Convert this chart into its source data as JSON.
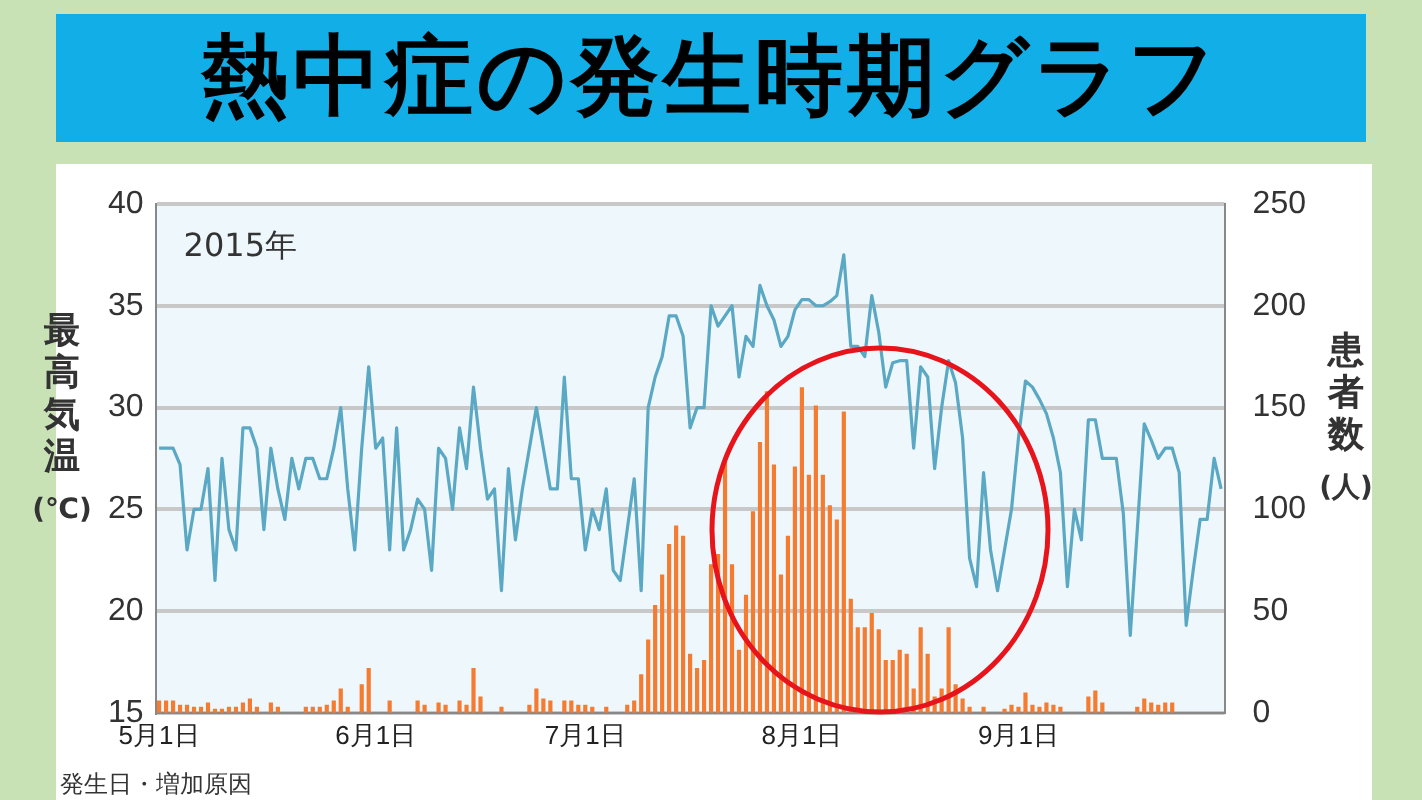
{
  "chart_data": {
    "type": "bar",
    "title": "熱中症の発生時期グラフ",
    "ylabel": "最高気温(℃)",
    "y2label": "患者数(人)",
    "annotations": [
      "2015年",
      "発生日・増加原因"
    ],
    "categories": [
      "5月1日",
      null,
      null,
      null,
      null,
      null,
      null,
      null,
      null,
      null,
      null,
      null,
      null,
      null,
      null,
      null,
      null,
      null,
      null,
      null,
      null,
      null,
      null,
      null,
      null,
      null,
      null,
      null,
      null,
      null,
      null,
      "6月1日",
      null,
      null,
      null,
      null,
      null,
      null,
      null,
      null,
      null,
      null,
      null,
      null,
      null,
      null,
      null,
      null,
      null,
      null,
      null,
      null,
      null,
      null,
      null,
      null,
      null,
      null,
      null,
      null,
      null,
      "7月1日",
      null,
      null,
      null,
      null,
      null,
      null,
      null,
      null,
      null,
      null,
      null,
      null,
      null,
      null,
      null,
      null,
      null,
      null,
      null,
      null,
      null,
      null,
      null,
      null,
      null,
      null,
      null,
      null,
      null,
      null,
      "8月1日",
      null,
      null,
      null,
      null,
      null,
      null,
      null,
      null,
      null,
      null,
      null,
      null,
      null,
      null,
      null,
      null,
      null,
      null,
      null,
      null,
      null,
      null,
      null,
      null,
      null,
      null,
      null,
      null,
      null,
      null,
      "9月1日",
      null,
      null,
      null,
      null,
      null,
      null,
      null,
      null,
      null,
      null,
      null,
      null,
      null,
      null,
      null,
      null,
      null,
      null,
      null,
      null,
      null,
      null,
      null,
      null,
      null,
      null,
      null,
      null,
      null
    ],
    "series": [
      {
        "axis": "y2",
        "color": "#f47b30",
        "values": [
          6,
          6,
          6,
          4,
          4,
          3,
          3,
          5,
          2,
          2,
          3,
          3,
          5,
          7,
          3,
          0,
          5,
          3,
          0,
          0,
          0,
          3,
          3,
          3,
          4,
          6,
          12,
          3,
          0,
          14,
          22,
          0,
          0,
          6,
          0,
          0,
          0,
          6,
          4,
          0,
          5,
          4,
          0,
          6,
          4,
          22,
          8,
          0,
          0,
          3,
          0,
          0,
          0,
          4,
          12,
          7,
          6,
          0,
          6,
          6,
          4,
          4,
          3,
          0,
          3,
          0,
          0,
          4,
          6,
          19,
          36,
          53,
          68,
          83,
          92,
          87,
          29,
          22,
          26,
          73,
          78,
          124,
          73,
          31,
          58,
          99,
          133,
          158,
          122,
          68,
          87,
          121,
          160,
          117,
          151,
          117,
          102,
          95,
          148,
          56,
          42,
          42,
          49,
          41,
          26,
          26,
          31,
          29,
          12,
          42,
          29,
          8,
          12,
          42,
          14,
          7,
          3,
          0,
          3,
          0,
          0,
          2,
          4,
          3,
          10,
          4,
          3,
          5,
          4,
          3,
          0,
          0,
          0,
          8,
          11,
          5,
          0,
          0,
          0,
          0,
          3,
          7,
          5,
          4,
          5,
          5,
          0,
          0,
          0,
          0,
          0,
          0,
          0
        ]
      },
      {
        "type": "line",
        "axis": "y",
        "color": "#5ba8c4",
        "values": [
          28,
          28,
          28,
          27.2,
          23,
          25,
          25,
          27,
          21.5,
          27.5,
          24,
          23,
          29,
          29,
          28,
          24,
          28,
          26,
          24.5,
          27.5,
          26,
          27.5,
          27.5,
          26.5,
          26.5,
          28,
          30,
          26,
          23,
          28,
          32,
          28,
          28.5,
          23,
          29,
          23,
          24,
          25.5,
          25,
          22,
          28,
          27.5,
          25,
          29,
          27,
          31,
          28,
          25.5,
          26,
          21,
          27,
          23.5,
          26,
          28,
          30,
          28,
          26,
          26,
          31.5,
          26.5,
          26.5,
          23,
          25,
          24,
          26,
          22,
          21.5,
          24,
          26.5,
          21,
          30,
          31.5,
          32.5,
          34.5,
          34.5,
          33.5,
          29,
          30,
          30,
          35,
          34,
          34.5,
          35,
          31.5,
          33.5,
          33,
          36,
          35,
          34.3,
          33,
          33.5,
          34.8,
          35.3,
          35.3,
          35,
          35,
          35.2,
          35.5,
          37.5,
          33,
          33,
          32.5,
          35.5,
          33.7,
          31,
          32.2,
          32.3,
          32.3,
          28,
          32,
          31.5,
          27,
          30,
          32.3,
          31.2,
          28.5,
          22.6,
          21.2,
          26.8,
          23,
          21,
          23,
          25,
          28.5,
          31.3,
          31,
          30.4,
          29.7,
          28.5,
          26.8,
          21.2,
          25,
          23.5,
          29.4,
          29.4,
          27.5,
          27.5,
          27.5,
          24.8,
          18.8,
          24,
          29.2,
          28.4,
          27.5,
          28,
          28,
          26.8,
          19.3,
          22,
          24.5,
          24.5,
          27.5,
          26
        ]
      }
    ],
    "ylim": [
      15,
      40
    ],
    "yticks": [
      15,
      20,
      25,
      30,
      35,
      40
    ],
    "y2lim": [
      0,
      250
    ],
    "y2ticks": [
      0,
      50,
      100,
      150,
      200,
      250
    ],
    "grid": "y",
    "marker": "none"
  }
}
